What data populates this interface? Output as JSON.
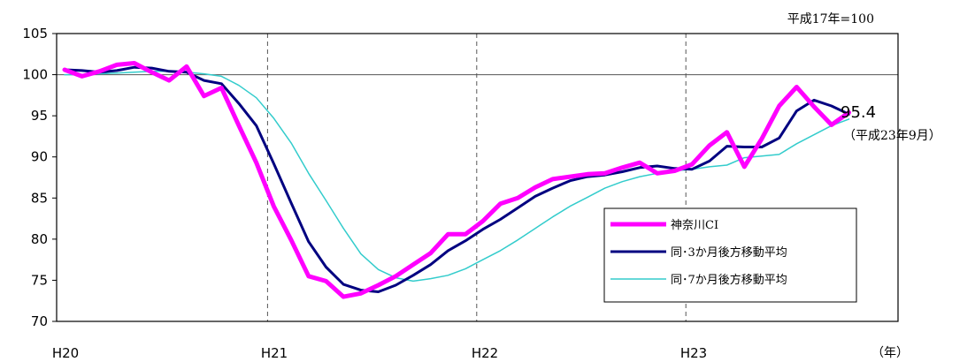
{
  "chart_data": {
    "type": "line",
    "base_note": "平成17年=100",
    "x_unit": "（年）",
    "x_tick_labels": [
      "H20",
      "H21",
      "H22",
      "H23"
    ],
    "ylim": [
      70,
      105
    ],
    "y_ticks": [
      70,
      75,
      80,
      85,
      90,
      95,
      100,
      105
    ],
    "reference_line": 100,
    "colors": {
      "ci": "#ff00ff",
      "ma3": "#000080",
      "ma7": "#33cccc",
      "axis": "#000000",
      "grid": "#555555"
    },
    "series": [
      {
        "name": "神奈川CI",
        "values": [
          100.6,
          99.8,
          100.4,
          101.2,
          101.4,
          100.3,
          99.3,
          101.0,
          97.4,
          98.4,
          93.8,
          89.3,
          84.0,
          79.9,
          75.5,
          74.9,
          73.0,
          73.4,
          74.4,
          75.5,
          76.9,
          78.3,
          80.6,
          80.6,
          82.2,
          84.3,
          85.0,
          86.3,
          87.3,
          87.6,
          87.9,
          88.0,
          88.7,
          89.3,
          88.0,
          88.3,
          89.1,
          91.4,
          93.0,
          88.8,
          92.2,
          96.2,
          98.5,
          96.1,
          93.9,
          95.4
        ]
      },
      {
        "name": "同･3か月後方移動平均",
        "values": [
          100.6,
          100.5,
          100.3,
          100.5,
          100.9,
          100.8,
          100.4,
          100.3,
          99.3,
          98.9,
          96.5,
          93.8,
          89.2,
          84.4,
          79.7,
          76.6,
          74.5,
          73.8,
          73.6,
          74.4,
          75.6,
          76.9,
          78.6,
          79.8,
          81.2,
          82.4,
          83.8,
          85.2,
          86.2,
          87.1,
          87.6,
          87.8,
          88.2,
          88.7,
          88.9,
          88.6,
          88.5,
          89.5,
          91.3,
          91.2,
          91.2,
          92.3,
          95.6,
          96.9,
          96.2,
          95.2
        ]
      },
      {
        "name": "同･7か月後方移動平均",
        "values": [
          100.0,
          100.0,
          100.1,
          100.2,
          100.3,
          100.4,
          100.4,
          100.3,
          100.1,
          99.8,
          98.7,
          97.2,
          94.7,
          91.7,
          88.0,
          84.7,
          81.3,
          78.2,
          76.3,
          75.3,
          74.9,
          75.2,
          75.6,
          76.4,
          77.5,
          78.6,
          79.9,
          81.3,
          82.7,
          84.0,
          85.1,
          86.2,
          87.0,
          87.6,
          88.0,
          88.3,
          88.5,
          88.8,
          89.0,
          89.9,
          90.1,
          90.3,
          91.6,
          92.7,
          93.8,
          94.6
        ]
      }
    ],
    "annotation": {
      "value_label": "95.4",
      "period_label": "（平成23年9月）"
    }
  }
}
